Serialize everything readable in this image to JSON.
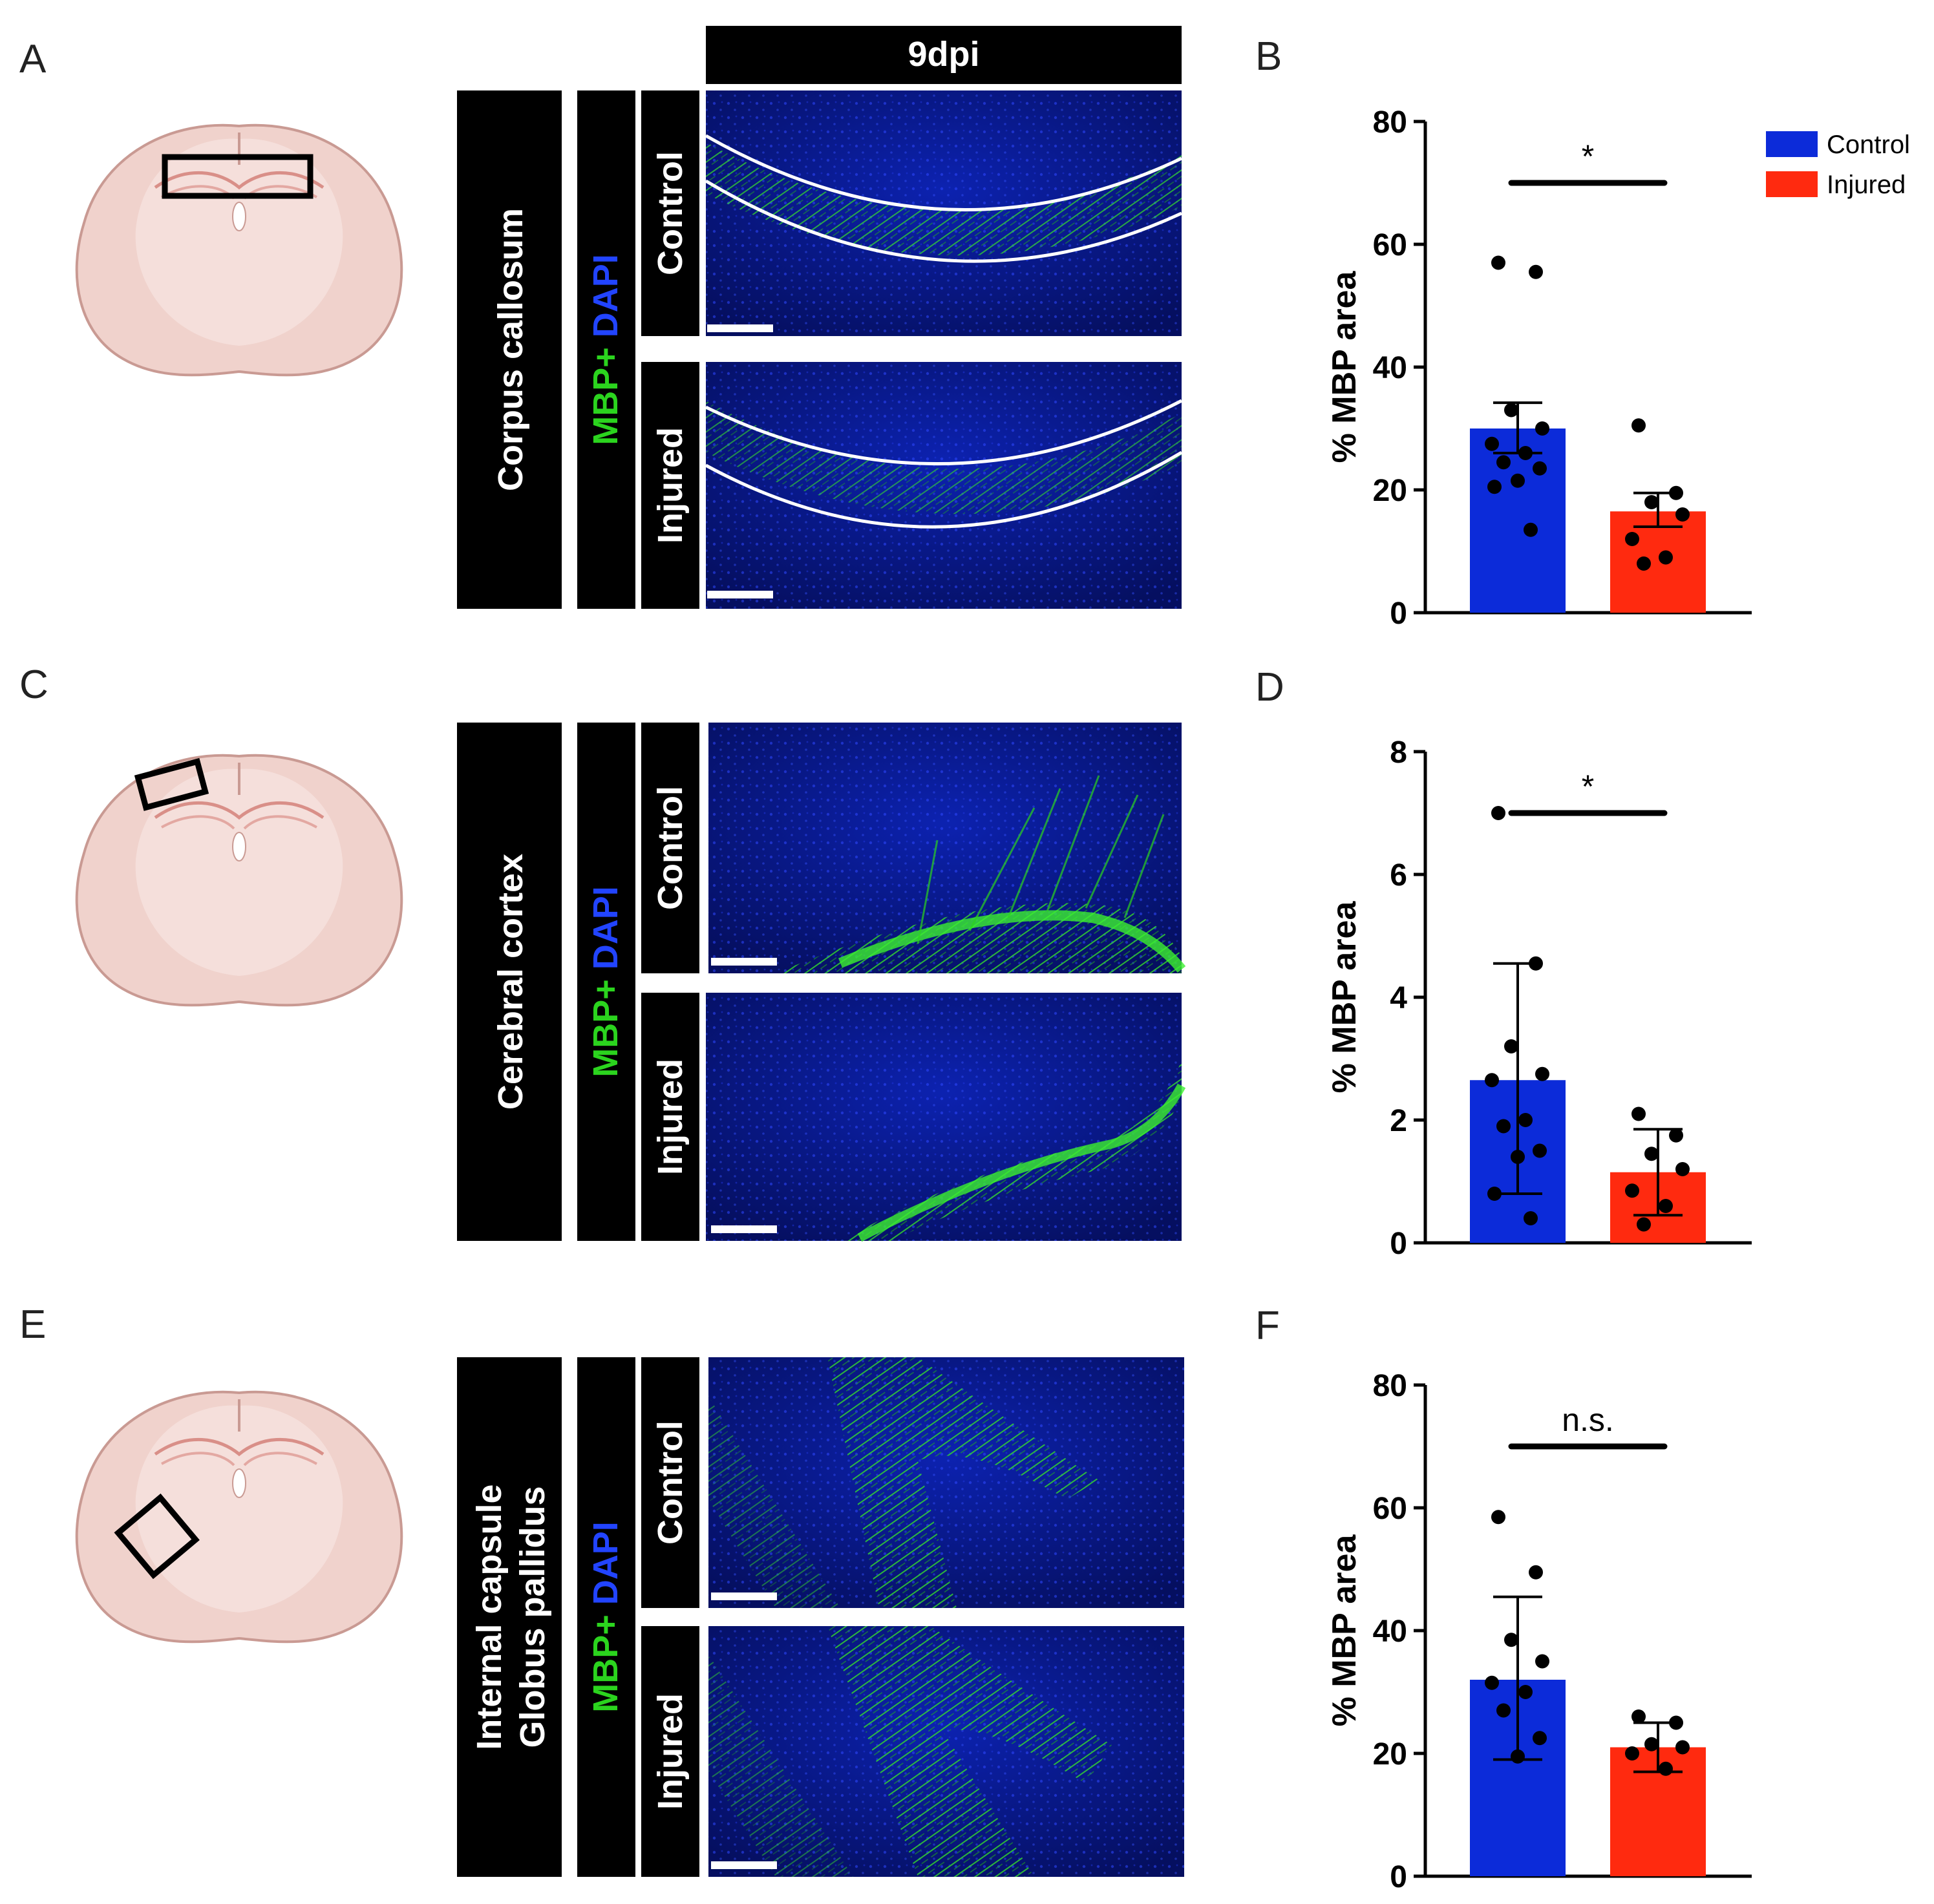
{
  "figure": {
    "timepoint_label": "9dpi",
    "stain_parts": [
      {
        "text": "MBP+ ",
        "color": "#2bd41e"
      },
      {
        "text": "DAPI",
        "color": "#2244ff"
      }
    ],
    "condition_labels": [
      "Control",
      "Injured"
    ],
    "rows": [
      {
        "image_panel": "A",
        "chart_panel": "B",
        "region_lines": [
          "Corpus  callosum"
        ],
        "brain_box_shape": "horizontal-rect"
      },
      {
        "image_panel": "C",
        "chart_panel": "D",
        "region_lines": [
          "Cerebral cortex"
        ],
        "brain_box_shape": "tilted-rect"
      },
      {
        "image_panel": "E",
        "chart_panel": "F",
        "region_lines": [
          "Internal capsule",
          "Globus pallidus"
        ],
        "brain_box_shape": "diamond"
      }
    ]
  },
  "legend": {
    "entries": [
      {
        "label": "Control",
        "color": "#0c2bd9"
      },
      {
        "label": "Injured",
        "color": "#ff2a0f"
      }
    ]
  },
  "colors": {
    "control": "#0c2bd9",
    "injured": "#ff2a0f",
    "brain_fill": "#f0d2cc",
    "brain_inner": "#f6e2de",
    "brain_outline": "#c99a93",
    "tissue_blue": "#0a1a9a",
    "tissue_green": "#2bd41e"
  },
  "chart_data": [
    {
      "panel": "B",
      "type": "bar",
      "categories": [
        "Control",
        "Injured"
      ],
      "values": [
        30,
        16.5
      ],
      "error": [
        [
          26,
          34.2
        ],
        [
          14,
          19.5
        ]
      ],
      "points": [
        [
          57,
          55.5,
          33,
          30,
          27.5,
          26,
          24.5,
          23.5,
          21.5,
          20.5,
          13.5
        ],
        [
          30.5,
          19.5,
          18,
          16,
          12,
          9,
          8
        ]
      ],
      "ylabel": "% MBP area",
      "ylim": [
        0,
        80
      ],
      "yticks": [
        0,
        20,
        40,
        60,
        80
      ],
      "significance": "*"
    },
    {
      "panel": "D",
      "type": "bar",
      "categories": [
        "Control",
        "Injured"
      ],
      "values": [
        2.65,
        1.15
      ],
      "error": [
        [
          0.8,
          4.55
        ],
        [
          0.45,
          1.85
        ]
      ],
      "points": [
        [
          7.0,
          4.55,
          3.2,
          2.75,
          2.65,
          2.0,
          1.9,
          1.5,
          1.4,
          0.8,
          0.4
        ],
        [
          2.1,
          1.75,
          1.45,
          1.2,
          0.85,
          0.6,
          0.3
        ]
      ],
      "ylabel": "% MBP area",
      "ylim": [
        0,
        8
      ],
      "yticks": [
        0,
        2,
        4,
        6,
        8
      ],
      "significance": "*"
    },
    {
      "panel": "F",
      "type": "bar",
      "categories": [
        "Control",
        "Injured"
      ],
      "values": [
        32,
        21
      ],
      "error": [
        [
          19,
          45.5
        ],
        [
          17,
          25
        ]
      ],
      "points": [
        [
          58.5,
          49.5,
          38.5,
          35,
          31.5,
          30,
          27,
          22.5,
          19.5
        ],
        [
          26,
          25,
          21.5,
          21,
          20,
          17.5
        ]
      ],
      "ylabel": "% MBP area",
      "ylim": [
        0,
        80
      ],
      "yticks": [
        0,
        20,
        40,
        60,
        80
      ],
      "significance": "n.s."
    }
  ]
}
